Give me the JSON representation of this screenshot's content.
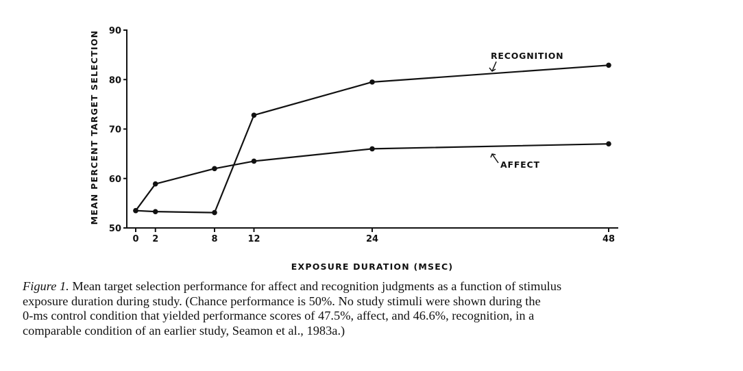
{
  "chart_data": {
    "type": "line",
    "title": "",
    "xlabel": "EXPOSURE DURATION (MSEC)",
    "ylabel": "MEAN PERCENT TARGET SELECTION",
    "xlim": [
      0,
      48
    ],
    "ylim": [
      50,
      90
    ],
    "x_ticks": [
      0,
      2,
      8,
      12,
      24,
      48
    ],
    "y_ticks": [
      50,
      60,
      70,
      80,
      90
    ],
    "grid": false,
    "series": [
      {
        "name": "RECOGNITION",
        "x": [
          0,
          2,
          8,
          12,
          24,
          48
        ],
        "y": [
          53.5,
          53.3,
          53.1,
          72.8,
          79.5,
          82.9
        ]
      },
      {
        "name": "AFFECT",
        "x": [
          0,
          2,
          8,
          12,
          24,
          48
        ],
        "y": [
          53.5,
          58.9,
          62.0,
          63.5,
          66.0,
          67.0
        ]
      }
    ]
  },
  "caption": {
    "label": "Figure 1.",
    "lines": [
      " Mean target selection performance for affect and recognition judgments as a function of stimulus",
      "exposure duration during study. (Chance performance is 50%. No study stimuli were shown during the",
      "0-ms control condition that yielded performance scores of 47.5%, affect, and 46.6%, recognition, in a",
      "comparable condition of an earlier study, Seamon et al., 1983a.)"
    ]
  },
  "colors": {
    "ink": "#111111",
    "background": "#ffffff"
  }
}
